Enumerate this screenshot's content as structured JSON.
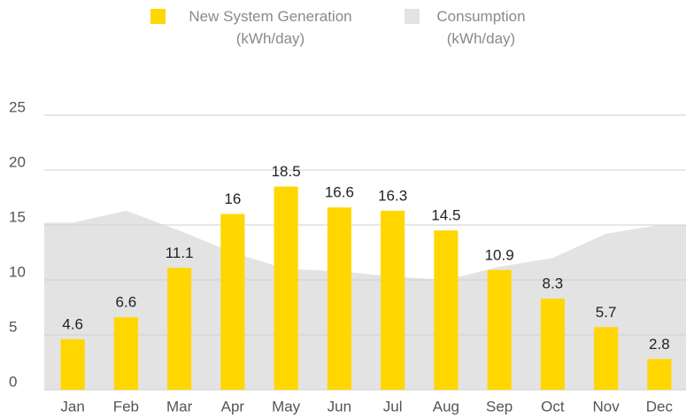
{
  "chart_data": {
    "type": "bar",
    "categories": [
      "Jan",
      "Feb",
      "Mar",
      "Apr",
      "May",
      "Jun",
      "Jul",
      "Aug",
      "Sep",
      "Oct",
      "Nov",
      "Dec"
    ],
    "series": [
      {
        "name": "New System Generation (kWh/day)",
        "color": "#ffd600",
        "type": "bar",
        "values": [
          4.6,
          6.6,
          11.1,
          16,
          18.5,
          16.6,
          16.3,
          14.5,
          10.9,
          8.3,
          5.7,
          2.8
        ]
      },
      {
        "name": "Consumption (kWh/day)",
        "color": "#e3e3e3",
        "type": "area",
        "values": [
          15.2,
          16.3,
          14.5,
          12.5,
          11.0,
          10.8,
          10.3,
          10.0,
          11.2,
          12.0,
          14.2,
          15.0
        ]
      }
    ],
    "ylim": [
      0,
      25
    ],
    "yticks": [
      0,
      5,
      10,
      15,
      20,
      25
    ],
    "grid": true
  }
}
